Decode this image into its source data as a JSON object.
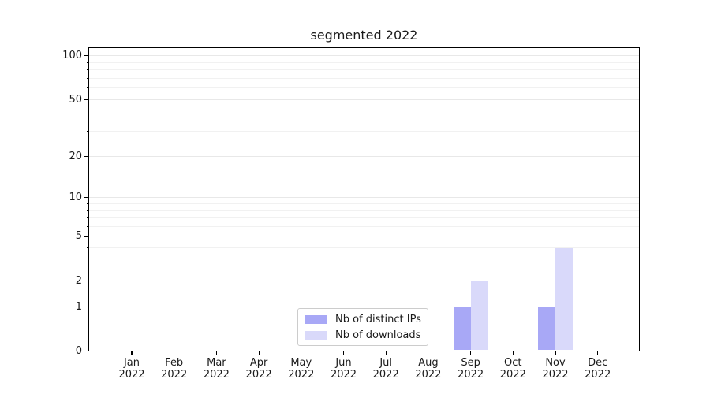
{
  "chart_data": {
    "type": "bar",
    "title": "segmented 2022",
    "x_tick_year": "2022",
    "categories": [
      "Jan",
      "Feb",
      "Mar",
      "Apr",
      "May",
      "Jun",
      "Jul",
      "Aug",
      "Sep",
      "Oct",
      "Nov",
      "Dec"
    ],
    "series": [
      {
        "name": "Nb of distinct IPs",
        "color": "#a8a8f6",
        "values": [
          0,
          0,
          0,
          0,
          0,
          0,
          0,
          0,
          1,
          0,
          1,
          0
        ]
      },
      {
        "name": "Nb of downloads",
        "color": "#d9d9fa",
        "values": [
          0,
          0,
          0,
          0,
          0,
          0,
          0,
          0,
          2,
          0,
          4,
          0
        ]
      }
    ],
    "yscale": "log1p",
    "ylim": [
      0,
      114
    ],
    "yticks": [
      0,
      1,
      2,
      5,
      10,
      20,
      50,
      100
    ],
    "yticks_minor": [
      3,
      4,
      6,
      7,
      8,
      9,
      30,
      40,
      60,
      70,
      80,
      90
    ],
    "grid": "horizontal",
    "legend_position": "lower center",
    "colors": {
      "axis": "#000000",
      "text": "#1a1a1a",
      "grid_minor": "rgba(0,0,0,0.055)",
      "grid_major": "rgba(0,0,0,0.09)",
      "grid_unit_line": "rgba(0,0,0,0.26)"
    }
  }
}
